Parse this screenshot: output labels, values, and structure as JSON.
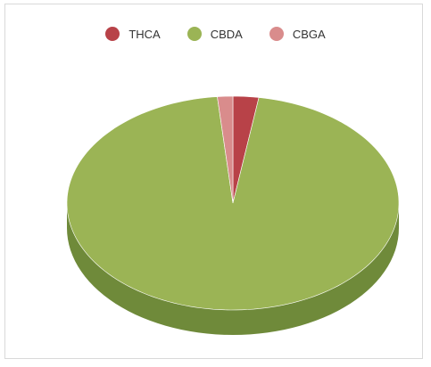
{
  "chart_data": {
    "type": "pie",
    "title": "",
    "legend_position": "top",
    "categories": [
      "THCA",
      "CBDA",
      "CBGA"
    ],
    "values": [
      2.5,
      96.0,
      1.5
    ],
    "colors": [
      "#b84248",
      "#9bb455",
      "#d98c8c"
    ],
    "side_colors": [
      "#8a3236",
      "#6f8a3a",
      "#a86a6a"
    ]
  }
}
